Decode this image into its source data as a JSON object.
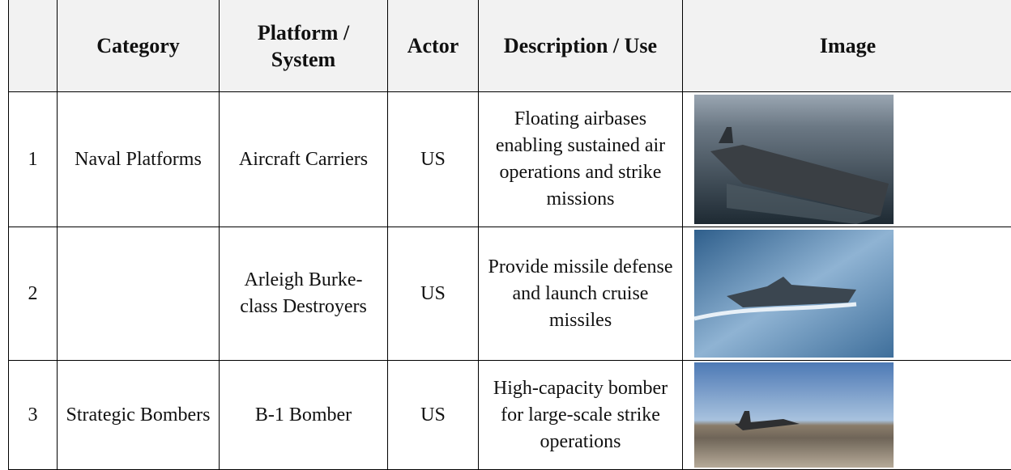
{
  "table": {
    "headers": [
      "Category",
      "Platform / System",
      "Actor",
      "Description / Use",
      "Image"
    ],
    "rows": [
      {
        "number": 1,
        "category": "Naval Platforms",
        "platform": "Aircraft Carriers",
        "actor": "US",
        "description": "Floating airbases enabling sustained air operations and strike missions"
      },
      {
        "number": 2,
        "platform": "Arleigh Burke-class Destroyers",
        "actor": "US",
        "description": "Provide missile defense and launch cruise missiles"
      },
      {
        "number": 3,
        "category": "Strategic Bombers",
        "platform": "B-1 Bomber",
        "actor": "US",
        "description": "High-capacity bomber for large-scale strike operations"
      }
    ]
  }
}
